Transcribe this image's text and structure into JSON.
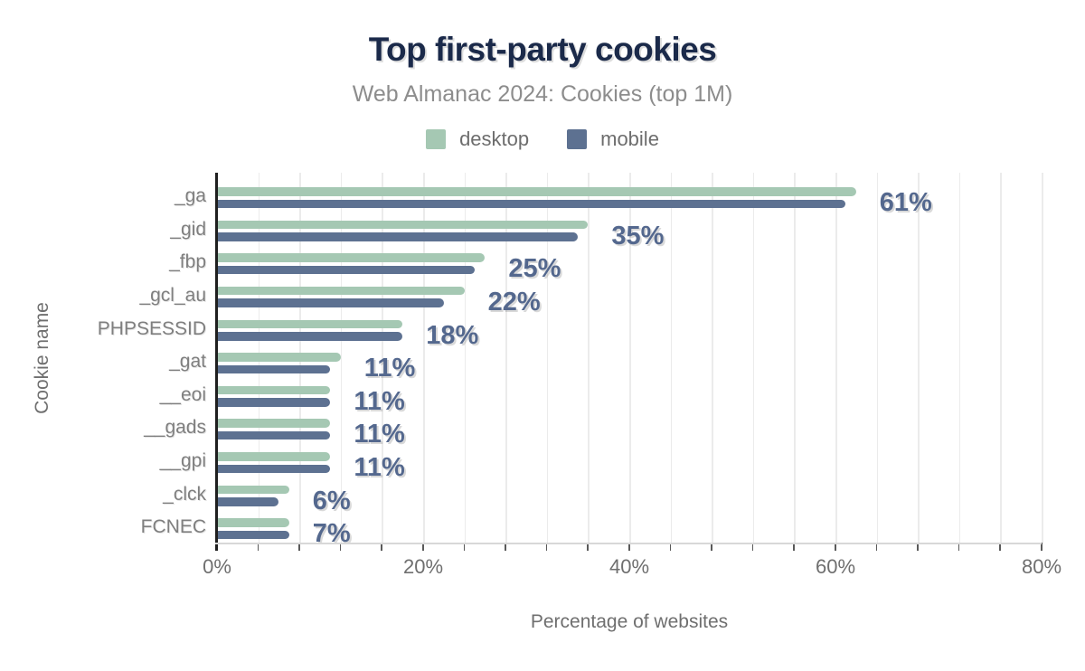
{
  "title": "Top first-party cookies",
  "subtitle": "Web Almanac 2024: Cookies (top 1M)",
  "x_axis_title": "Percentage of websites",
  "y_axis_title": "Cookie name",
  "colors": {
    "title": "#1b2a4a",
    "subtitle": "#8d8d8d",
    "axis_text": "#6f6f6f",
    "category_text": "#7f7f7f",
    "value_label": "#54688e",
    "desktop": "#a5c8b3",
    "mobile": "#5d7191",
    "gridline": "#ebebeb",
    "y_axis_line": "#1f1f1f",
    "x_baseline": "#d8d8d8"
  },
  "chart_data": {
    "type": "bar",
    "orientation": "horizontal",
    "title": "Top first-party cookies",
    "subtitle": "Web Almanac 2024: Cookies (top 1M)",
    "xlabel": "Percentage of websites",
    "ylabel": "Cookie name",
    "xlim": [
      0,
      80
    ],
    "x_tick_values": [
      0,
      20,
      40,
      60,
      80
    ],
    "x_tick_labels": [
      "0%",
      "20%",
      "40%",
      "60%",
      "80%"
    ],
    "minor_grid_step_percent": 4,
    "grid": "vertical-minor-on",
    "legend_position": "top-center",
    "categories": [
      "_ga",
      "_gid",
      "_fbp",
      "_gcl_au",
      "PHPSESSID",
      "_gat",
      "__eoi",
      "__gads",
      "__gpi",
      "_clck",
      "FCNEC"
    ],
    "series": [
      {
        "name": "desktop",
        "color": "#a5c8b3",
        "values": [
          62,
          36,
          26,
          24,
          18,
          12,
          11,
          11,
          11,
          7,
          7
        ]
      },
      {
        "name": "mobile",
        "color": "#5d7191",
        "values": [
          61,
          35,
          25,
          22,
          18,
          11,
          11,
          11,
          11,
          6,
          7
        ]
      }
    ],
    "value_labels": [
      "61%",
      "35%",
      "25%",
      "22%",
      "18%",
      "11%",
      "11%",
      "11%",
      "11%",
      "6%",
      "7%"
    ]
  }
}
